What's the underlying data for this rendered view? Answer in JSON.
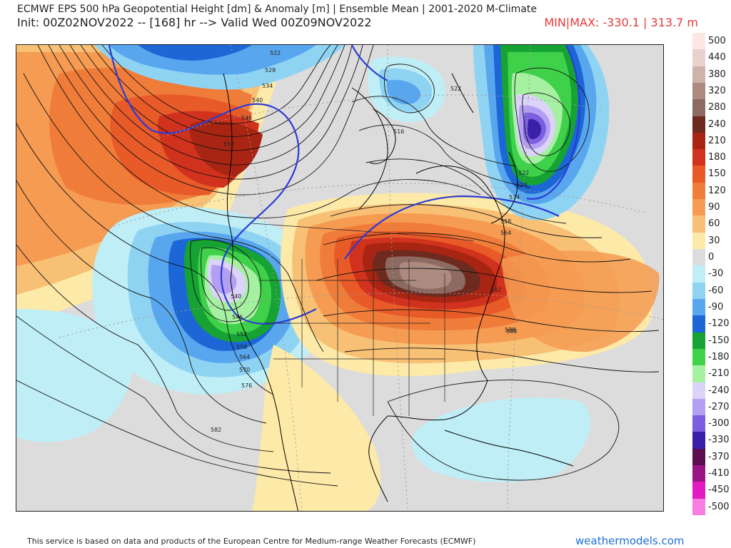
{
  "header": {
    "title": "ECMWF EPS 500 hPa Geopotential Height [dm] & Anomaly [m] | Ensemble Mean | 2001-2020 M-Climate",
    "init": "Init: 00Z02NOV2022 -- [168] hr --> Valid Wed 00Z09NOV2022",
    "minmax": "MIN|MAX: -330.1 | 313.7 m"
  },
  "colorbar": {
    "stops": [
      {
        "label": "500",
        "color": "#fde6e4"
      },
      {
        "label": "440",
        "color": "#e9d2cd"
      },
      {
        "label": "380",
        "color": "#cfb3aa"
      },
      {
        "label": "320",
        "color": "#ad8a80"
      },
      {
        "label": "280",
        "color": "#8e6b62"
      },
      {
        "label": "240",
        "color": "#6e2a1f"
      },
      {
        "label": "210",
        "color": "#a82513"
      },
      {
        "label": "180",
        "color": "#d1321d"
      },
      {
        "label": "150",
        "color": "#e85a28"
      },
      {
        "label": "120",
        "color": "#f07c3a"
      },
      {
        "label": "90",
        "color": "#f59b52"
      },
      {
        "label": "60",
        "color": "#f8c075"
      },
      {
        "label": "30",
        "color": "#fde9a8"
      },
      {
        "label": "0",
        "color": "#dcdcdc"
      },
      {
        "label": "-30",
        "color": "#bfeef7"
      },
      {
        "label": "-60",
        "color": "#8fd3f3"
      },
      {
        "label": "-90",
        "color": "#58a6ee"
      },
      {
        "label": "-120",
        "color": "#1c66d6"
      },
      {
        "label": "-150",
        "color": "#16a334"
      },
      {
        "label": "-180",
        "color": "#3fd14a"
      },
      {
        "label": "-210",
        "color": "#a6f0a2"
      },
      {
        "label": "-240",
        "color": "#dcd3f8"
      },
      {
        "label": "-270",
        "color": "#b3a0f2"
      },
      {
        "label": "-300",
        "color": "#7b5fe0"
      },
      {
        "label": "-330",
        "color": "#3a1fa8"
      },
      {
        "label": "-370",
        "color": "#5c0f4e"
      },
      {
        "label": "-410",
        "color": "#9a1483"
      },
      {
        "label": "-450",
        "color": "#e21bc2"
      },
      {
        "label": "-500",
        "color": "#f77ee0"
      }
    ]
  },
  "contour_labels": [
    "522",
    "528",
    "534",
    "540",
    "546",
    "552",
    "522",
    "516",
    "522",
    "528",
    "534",
    "540",
    "546",
    "552",
    "558",
    "564",
    "570",
    "576",
    "582",
    "588",
    "582",
    "588",
    "558",
    "564"
  ],
  "footer": {
    "note": "This service is based on data and products of the European Centre for Medium-range Weather Forecasts (ECMWF)",
    "brand": "weathermodels.com"
  }
}
